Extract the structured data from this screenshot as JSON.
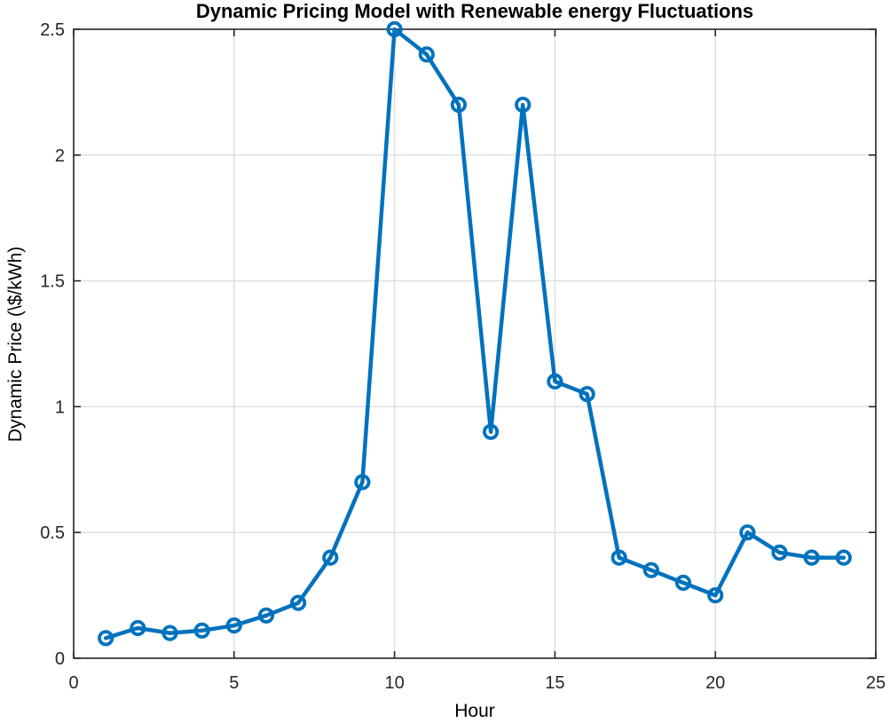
{
  "chart_data": {
    "type": "line",
    "title": "Dynamic Pricing Model with Renewable energy Fluctuations",
    "xlabel": "Hour",
    "ylabel": "Dynamic Price (\\$/kWh)",
    "x": [
      1,
      2,
      3,
      4,
      5,
      6,
      7,
      8,
      9,
      10,
      11,
      12,
      13,
      14,
      15,
      16,
      17,
      18,
      19,
      20,
      21,
      22,
      23,
      24
    ],
    "y": [
      0.08,
      0.12,
      0.1,
      0.11,
      0.13,
      0.17,
      0.22,
      0.4,
      0.7,
      2.5,
      2.4,
      2.2,
      0.9,
      2.2,
      1.1,
      1.05,
      0.4,
      0.35,
      0.3,
      0.25,
      0.5,
      0.42,
      0.4,
      0.4
    ],
    "xlim": [
      0,
      25
    ],
    "ylim": [
      0,
      2.5
    ],
    "xticks": [
      0,
      5,
      10,
      15,
      20,
      25
    ],
    "xtick_labels": [
      "0",
      "5",
      "10",
      "15",
      "20",
      "25"
    ],
    "yticks": [
      0,
      0.5,
      1,
      1.5,
      2,
      2.5
    ],
    "ytick_labels": [
      "0",
      "0.5",
      "1",
      "1.5",
      "2",
      "2.5"
    ],
    "grid": true,
    "legend": "none",
    "marker": "open-circle",
    "colors": {
      "line": "#0072BD",
      "grid": "#e0e0e0",
      "axis": "#262626",
      "background": "#ffffff"
    }
  }
}
